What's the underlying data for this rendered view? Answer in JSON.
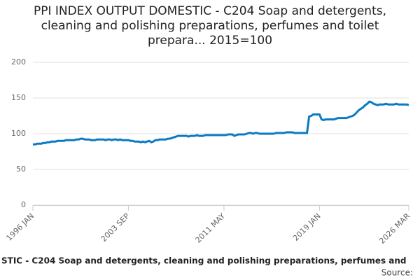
{
  "chart_data": {
    "type": "line",
    "title": "PPI INDEX OUTPUT DOMESTIC - C204 Soap and detergents, cleaning and polishing preparations, perfumes and toilet prepara... 2015=100",
    "source": "Source:",
    "categories": [
      "1996 JAN",
      null,
      null,
      null,
      null,
      null,
      null,
      null,
      null,
      null,
      null,
      null,
      null,
      null,
      null,
      null,
      null,
      null,
      null,
      null,
      null,
      null,
      null,
      null,
      null,
      null,
      null,
      null,
      null,
      null,
      null,
      null,
      null,
      null,
      null,
      null,
      null,
      null,
      null,
      null,
      null,
      null,
      null,
      null,
      null,
      null,
      "2003 SEP",
      null,
      null,
      null,
      null,
      null,
      null,
      null,
      null,
      null,
      null,
      null,
      null,
      null,
      null,
      null,
      null,
      null,
      null,
      null,
      null,
      null,
      null,
      null,
      null,
      null,
      null,
      null,
      null,
      null,
      null,
      null,
      null,
      null,
      null,
      null,
      null,
      null,
      null,
      null,
      null,
      null,
      null,
      null,
      null,
      null,
      "2011 MAY",
      null,
      null,
      null,
      null,
      null,
      null,
      null,
      null,
      null,
      null,
      null,
      null,
      null,
      null,
      null,
      null,
      null,
      null,
      null,
      null,
      null,
      null,
      null,
      null,
      null,
      null,
      null,
      null,
      null,
      null,
      null,
      null,
      null,
      null,
      null,
      null,
      null,
      null,
      null,
      null,
      null,
      null,
      null,
      null,
      null,
      "2019 JAN",
      null,
      null,
      null,
      null,
      null,
      null,
      null,
      null,
      null,
      null,
      null,
      null,
      null,
      null,
      null,
      null,
      null,
      null,
      null,
      null,
      null,
      null,
      null,
      null,
      null,
      null,
      null,
      null,
      null,
      null,
      null,
      null,
      null,
      null,
      null,
      null,
      null,
      null,
      null,
      null,
      null,
      null,
      "2026 MAR"
    ],
    "series": [
      {
        "name": "STIC - C204 Soap and detergents, cleaning and polishing preparations, perfumes and",
        "color": "#0a7bc2",
        "values": [
          85,
          85,
          86,
          86,
          86,
          87,
          87,
          88,
          88,
          89,
          89,
          89,
          90,
          90,
          90,
          90,
          91,
          91,
          91,
          91,
          91,
          92,
          92,
          93,
          93,
          92,
          92,
          92,
          91,
          91,
          91,
          92,
          92,
          92,
          92,
          91,
          92,
          92,
          91,
          92,
          92,
          91,
          92,
          91,
          91,
          91,
          91,
          90,
          90,
          89,
          89,
          89,
          88,
          89,
          88,
          89,
          90,
          88,
          89,
          91,
          91,
          92,
          92,
          92,
          92,
          93,
          93,
          94,
          95,
          96,
          97,
          97,
          97,
          97,
          97,
          96,
          97,
          97,
          97,
          98,
          97,
          97,
          97,
          98,
          98,
          98,
          98,
          98,
          98,
          98,
          98,
          98,
          98,
          98,
          99,
          99,
          99,
          97,
          98,
          99,
          99,
          99,
          99,
          100,
          101,
          101,
          100,
          101,
          101,
          100,
          100,
          100,
          100,
          100,
          100,
          100,
          100,
          101,
          101,
          101,
          101,
          101,
          102,
          102,
          102,
          102,
          101,
          101,
          101,
          101,
          101,
          101,
          101,
          124,
          125,
          127,
          127,
          127,
          127,
          120,
          119,
          120,
          120,
          120,
          120,
          120,
          121,
          122,
          122,
          122,
          122,
          122,
          123,
          124,
          125,
          127,
          130,
          133,
          135,
          137,
          140,
          142,
          145,
          144,
          142,
          141,
          140,
          141,
          141,
          141,
          142,
          141,
          141,
          141,
          141,
          142,
          141,
          141,
          141,
          141,
          141,
          140
        ]
      }
    ],
    "ylim": [
      0,
      200
    ],
    "yticks": [
      0,
      50,
      100,
      150,
      200
    ],
    "grid": true
  }
}
